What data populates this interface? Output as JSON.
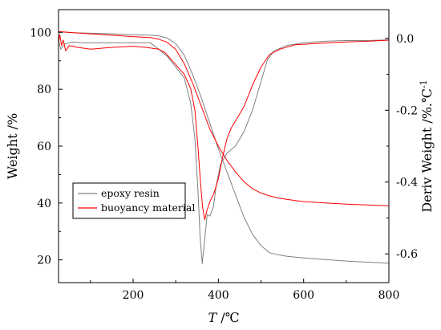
{
  "chart_data": {
    "type": "line",
    "title": "",
    "xlabel_italic": "T",
    "xlabel_unit": " /℃",
    "ylabel_left": "Weight /%",
    "ylabel_right": "Deriv Weight /%.℃",
    "ylabel_right_sup": "-1",
    "xlim": [
      25,
      800
    ],
    "ylim_left": [
      12,
      108
    ],
    "ylim_right": [
      -0.68,
      0.08
    ],
    "x_ticks": [
      200,
      400,
      600,
      800
    ],
    "y_left_ticks": [
      20,
      40,
      60,
      80,
      100
    ],
    "y_right_ticks": [
      "-0.6",
      "-0.4",
      "-0.2",
      "0.0"
    ],
    "y_right_tick_values": [
      -0.6,
      -0.4,
      -0.2,
      0.0
    ],
    "legend_position": "lower-left",
    "series": [
      {
        "name": "epoxy resin",
        "color": "#808080",
        "kind": "tg",
        "axis": "left",
        "points": [
          [
            25,
            100.2
          ],
          [
            60,
            99.9
          ],
          [
            100,
            99.7
          ],
          [
            150,
            99.5
          ],
          [
            200,
            99.2
          ],
          [
            240,
            99.0
          ],
          [
            260,
            98.8
          ],
          [
            280,
            98.0
          ],
          [
            300,
            96.0
          ],
          [
            320,
            92.0
          ],
          [
            340,
            85.0
          ],
          [
            360,
            77.0
          ],
          [
            380,
            68.0
          ],
          [
            400,
            59.0
          ],
          [
            420,
            51.0
          ],
          [
            440,
            43.0
          ],
          [
            460,
            35.0
          ],
          [
            480,
            29.0
          ],
          [
            500,
            25.0
          ],
          [
            520,
            22.5
          ],
          [
            540,
            21.8
          ],
          [
            560,
            21.3
          ],
          [
            600,
            20.7
          ],
          [
            650,
            20.1
          ],
          [
            700,
            19.6
          ],
          [
            750,
            19.2
          ],
          [
            800,
            18.8
          ]
        ]
      },
      {
        "name": "buoyancy material",
        "color": "#ff0000",
        "kind": "tg",
        "axis": "left",
        "points": [
          [
            25,
            100.3
          ],
          [
            60,
            99.9
          ],
          [
            100,
            99.5
          ],
          [
            150,
            99.0
          ],
          [
            200,
            98.5
          ],
          [
            240,
            98.2
          ],
          [
            260,
            97.6
          ],
          [
            280,
            96.5
          ],
          [
            300,
            94.0
          ],
          [
            320,
            89.0
          ],
          [
            340,
            82.0
          ],
          [
            360,
            74.0
          ],
          [
            380,
            66.0
          ],
          [
            400,
            60.0
          ],
          [
            420,
            55.0
          ],
          [
            440,
            51.0
          ],
          [
            460,
            47.5
          ],
          [
            480,
            45.0
          ],
          [
            500,
            43.5
          ],
          [
            520,
            42.5
          ],
          [
            540,
            41.8
          ],
          [
            560,
            41.3
          ],
          [
            600,
            40.5
          ],
          [
            650,
            40.0
          ],
          [
            700,
            39.6
          ],
          [
            750,
            39.3
          ],
          [
            800,
            39.0
          ]
        ]
      },
      {
        "name": "epoxy resin",
        "color": "#808080",
        "kind": "dtg",
        "axis": "right",
        "points": [
          [
            25,
            -0.005
          ],
          [
            30,
            -0.03
          ],
          [
            40,
            -0.015
          ],
          [
            60,
            -0.01
          ],
          [
            80,
            -0.012
          ],
          [
            100,
            -0.012
          ],
          [
            150,
            -0.012
          ],
          [
            200,
            -0.012
          ],
          [
            240,
            -0.012
          ],
          [
            260,
            -0.03
          ],
          [
            280,
            -0.05
          ],
          [
            300,
            -0.08
          ],
          [
            320,
            -0.11
          ],
          [
            335,
            -0.18
          ],
          [
            345,
            -0.28
          ],
          [
            352,
            -0.42
          ],
          [
            357,
            -0.55
          ],
          [
            362,
            -0.627
          ],
          [
            367,
            -0.57
          ],
          [
            374,
            -0.49
          ],
          [
            380,
            -0.495
          ],
          [
            388,
            -0.47
          ],
          [
            395,
            -0.41
          ],
          [
            405,
            -0.35
          ],
          [
            420,
            -0.32
          ],
          [
            440,
            -0.3
          ],
          [
            460,
            -0.26
          ],
          [
            480,
            -0.2
          ],
          [
            500,
            -0.12
          ],
          [
            515,
            -0.06
          ],
          [
            530,
            -0.035
          ],
          [
            560,
            -0.02
          ],
          [
            600,
            -0.012
          ],
          [
            650,
            -0.008
          ],
          [
            700,
            -0.006
          ],
          [
            750,
            -0.006
          ],
          [
            800,
            -0.004
          ]
        ]
      },
      {
        "name": "buoyancy material",
        "color": "#ff0000",
        "kind": "dtg",
        "axis": "right",
        "points": [
          [
            25,
            -0.012
          ],
          [
            28,
            0.01
          ],
          [
            32,
            -0.02
          ],
          [
            36,
            -0.005
          ],
          [
            42,
            -0.035
          ],
          [
            50,
            -0.02
          ],
          [
            70,
            -0.025
          ],
          [
            100,
            -0.03
          ],
          [
            150,
            -0.025
          ],
          [
            200,
            -0.022
          ],
          [
            230,
            -0.025
          ],
          [
            260,
            -0.03
          ],
          [
            275,
            -0.04
          ],
          [
            290,
            -0.06
          ],
          [
            305,
            -0.08
          ],
          [
            320,
            -0.1
          ],
          [
            335,
            -0.14
          ],
          [
            345,
            -0.2
          ],
          [
            352,
            -0.3
          ],
          [
            358,
            -0.4
          ],
          [
            363,
            -0.47
          ],
          [
            368,
            -0.505
          ],
          [
            373,
            -0.48
          ],
          [
            380,
            -0.455
          ],
          [
            390,
            -0.43
          ],
          [
            400,
            -0.39
          ],
          [
            410,
            -0.33
          ],
          [
            420,
            -0.28
          ],
          [
            430,
            -0.25
          ],
          [
            445,
            -0.22
          ],
          [
            460,
            -0.19
          ],
          [
            480,
            -0.13
          ],
          [
            500,
            -0.08
          ],
          [
            520,
            -0.045
          ],
          [
            545,
            -0.03
          ],
          [
            580,
            -0.018
          ],
          [
            620,
            -0.015
          ],
          [
            660,
            -0.012
          ],
          [
            700,
            -0.01
          ],
          [
            750,
            -0.008
          ],
          [
            800,
            -0.005
          ]
        ]
      }
    ]
  }
}
